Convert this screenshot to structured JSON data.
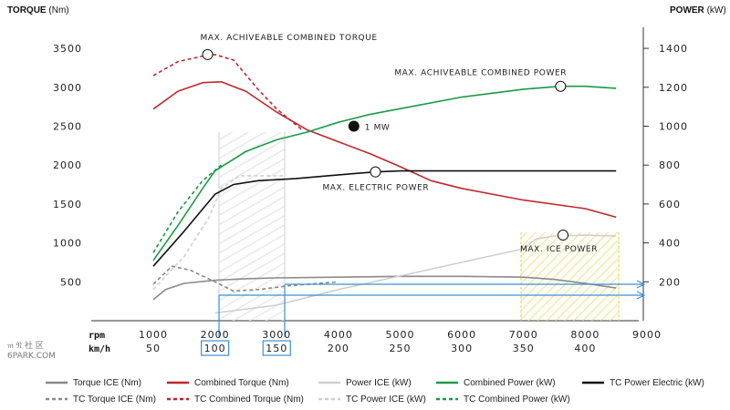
{
  "chart_data": {
    "type": "line",
    "title": "",
    "left_axis": {
      "title_bold": "TORQUE",
      "title_unit": "(Nm)",
      "ticks": [
        500,
        1000,
        1500,
        2000,
        2500,
        3000,
        3500
      ]
    },
    "right_axis": {
      "title_bold": "POWER",
      "title_unit": "(kW)",
      "ticks": [
        200,
        400,
        600,
        800,
        1000,
        1200,
        1400
      ]
    },
    "rpm_row": {
      "label": "rpm",
      "ticks": [
        1000,
        2000,
        3000,
        4000,
        5000,
        6000,
        7000,
        8000,
        9000
      ]
    },
    "kmh_row": {
      "label": "km/h",
      "ticks": [
        50,
        100,
        150,
        200,
        250,
        300,
        350,
        400
      ],
      "circled": [
        100,
        150
      ]
    },
    "xlim": [
      1000,
      9000
    ],
    "torque_lim": [
      0,
      3700
    ],
    "power_lim": [
      0,
      1480
    ],
    "series": [
      {
        "name": "Torque ICE (Nm)",
        "axis": "torque",
        "color": "#8a8a8a",
        "dash": false,
        "points": [
          [
            1000,
            270
          ],
          [
            1200,
            400
          ],
          [
            1500,
            480
          ],
          [
            2000,
            520
          ],
          [
            2500,
            540
          ],
          [
            3000,
            550
          ],
          [
            4000,
            560
          ],
          [
            5000,
            570
          ],
          [
            6000,
            570
          ],
          [
            7000,
            560
          ],
          [
            7500,
            530
          ],
          [
            8000,
            480
          ],
          [
            8500,
            420
          ]
        ]
      },
      {
        "name": "TC Torque ICE (Nm)",
        "axis": "torque",
        "color": "#8a8a8a",
        "dash": true,
        "points": [
          [
            1000,
            470
          ],
          [
            1300,
            700
          ],
          [
            1600,
            650
          ],
          [
            2000,
            500
          ],
          [
            2300,
            380
          ],
          [
            2700,
            400
          ],
          [
            3200,
            450
          ],
          [
            4000,
            500
          ]
        ]
      },
      {
        "name": "Combined Torque (Nm)",
        "axis": "torque",
        "color": "#c0272d",
        "dash": false,
        "points": [
          [
            1000,
            2720
          ],
          [
            1400,
            2950
          ],
          [
            1800,
            3060
          ],
          [
            2100,
            3070
          ],
          [
            2500,
            2950
          ],
          [
            3000,
            2680
          ],
          [
            3500,
            2450
          ],
          [
            4000,
            2300
          ],
          [
            4500,
            2150
          ],
          [
            5000,
            1980
          ],
          [
            5500,
            1800
          ],
          [
            6000,
            1700
          ],
          [
            7000,
            1550
          ],
          [
            8000,
            1440
          ],
          [
            8500,
            1330
          ]
        ]
      },
      {
        "name": "TC Combined Torque (Nm)",
        "axis": "torque",
        "color": "#c0272d",
        "dash": true,
        "points": [
          [
            1000,
            3150
          ],
          [
            1400,
            3330
          ],
          [
            1800,
            3400
          ],
          [
            2000,
            3420
          ],
          [
            2300,
            3350
          ],
          [
            2700,
            2970
          ],
          [
            3000,
            2720
          ],
          [
            3400,
            2460
          ]
        ]
      },
      {
        "name": "Power ICE (kW)",
        "axis": "power",
        "color": "#cfcfcf",
        "dash": false,
        "points": [
          [
            2000,
            40
          ],
          [
            3000,
            80
          ],
          [
            4000,
            160
          ],
          [
            5000,
            230
          ],
          [
            6000,
            300
          ],
          [
            7000,
            370
          ],
          [
            7200,
            420
          ],
          [
            7500,
            435
          ],
          [
            8000,
            440
          ],
          [
            8500,
            435
          ]
        ]
      },
      {
        "name": "TC Power ICE (kW)",
        "axis": "power",
        "color": "#cfcfcf",
        "dash": true,
        "points": [
          [
            1000,
            160
          ],
          [
            1500,
            330
          ],
          [
            1900,
            530
          ],
          [
            2100,
            680
          ],
          [
            2400,
            745
          ],
          [
            2800,
            745
          ],
          [
            3100,
            745
          ]
        ]
      },
      {
        "name": "Combined Power (kW)",
        "axis": "power",
        "color": "#1a9a47",
        "dash": false,
        "points": [
          [
            1000,
            310
          ],
          [
            1400,
            490
          ],
          [
            1800,
            680
          ],
          [
            2000,
            770
          ],
          [
            2500,
            870
          ],
          [
            3000,
            930
          ],
          [
            3500,
            970
          ],
          [
            4000,
            1020
          ],
          [
            4500,
            1060
          ],
          [
            5000,
            1090
          ],
          [
            6000,
            1150
          ],
          [
            7000,
            1190
          ],
          [
            7600,
            1205
          ],
          [
            8000,
            1205
          ],
          [
            8500,
            1195
          ]
        ]
      },
      {
        "name": "TC Combined Power (kW)",
        "axis": "power",
        "color": "#1a9a47",
        "dash": true,
        "points": [
          [
            1000,
            350
          ],
          [
            1400,
            560
          ],
          [
            1800,
            720
          ],
          [
            2100,
            800
          ]
        ]
      },
      {
        "name": "TC Power Electric (kW)",
        "axis": "power",
        "color": "#111111",
        "dash": false,
        "points": [
          [
            1000,
            280
          ],
          [
            1500,
            460
          ],
          [
            2000,
            650
          ],
          [
            2300,
            700
          ],
          [
            2700,
            720
          ],
          [
            3300,
            730
          ],
          [
            4000,
            750
          ],
          [
            4600,
            765
          ],
          [
            5000,
            770
          ],
          [
            6000,
            770
          ],
          [
            8500,
            770
          ]
        ]
      }
    ],
    "annotations": [
      {
        "text": "MAX. ACHIVEABLE COMBINED TORQUE",
        "x": 1880,
        "axis": "torque",
        "y": 3420
      },
      {
        "text": "MAX. ACHIVEABLE COMBINED POWER",
        "x": 7600,
        "axis": "power",
        "y": 1205
      },
      {
        "text": "1 MW",
        "x": 4250,
        "axis": "power",
        "y": 1000,
        "filled": true
      },
      {
        "text": "MAX. ELECTRIC POWER",
        "x": 4600,
        "axis": "power",
        "y": 765
      },
      {
        "text": "MAX. ICE POWER",
        "x": 7640,
        "axis": "power",
        "y": 440
      }
    ],
    "legend": {
      "position": "bottom",
      "rows": [
        [
          "Torque ICE (Nm)",
          "Combined Torque (Nm)",
          "Power ICE (kW)",
          "Combined Power (kW)",
          "TC Power Electric (kW)"
        ],
        [
          "TC Torque ICE (Nm)",
          "TC Combined Torque (Nm)",
          "TC Power ICE (kW)",
          "TC Combined Power (kW)"
        ]
      ]
    }
  },
  "watermark": {
    "glyphs": "𝔪 𝔑 社 区",
    "text": "6PARK.COM"
  },
  "colors": {
    "grid_band": "#d8d8d8",
    "ice_zone": "#f2e27a",
    "blue_marker": "#3a8fd6"
  }
}
